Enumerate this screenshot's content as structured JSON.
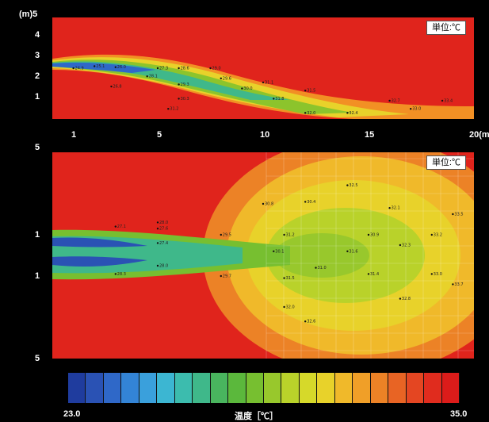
{
  "chart_data": [
    {
      "type": "heatmap",
      "ylabel": "(m)",
      "xlabel": "",
      "x_ticks": [
        "1",
        "5",
        "10",
        "15",
        "20(m)"
      ],
      "y_ticks": [
        "5",
        "4",
        "3",
        "2",
        "1"
      ],
      "unit_label": "単位:℃",
      "value_range": [
        23.0,
        35.0
      ],
      "points": [
        {
          "x": 1,
          "y": 2.5,
          "v": 24.9
        },
        {
          "x": 2,
          "y": 2.6,
          "v": 25.1
        },
        {
          "x": 3,
          "y": 2.55,
          "v": 26.0
        },
        {
          "x": 5,
          "y": 2.5,
          "v": 27.3
        },
        {
          "x": 6,
          "y": 2.5,
          "v": 28.6
        },
        {
          "x": 7.5,
          "y": 2.5,
          "v": 29.0
        },
        {
          "x": 2.8,
          "y": 1.6,
          "v": 26.8
        },
        {
          "x": 4.5,
          "y": 2.1,
          "v": 28.1
        },
        {
          "x": 6,
          "y": 1.7,
          "v": 29.3
        },
        {
          "x": 8,
          "y": 2.0,
          "v": 29.6
        },
        {
          "x": 9,
          "y": 1.5,
          "v": 30.0
        },
        {
          "x": 10,
          "y": 1.8,
          "v": 31.1
        },
        {
          "x": 12,
          "y": 1.4,
          "v": 31.5
        },
        {
          "x": 6,
          "y": 1.0,
          "v": 30.3
        },
        {
          "x": 5.5,
          "y": 0.5,
          "v": 31.2
        },
        {
          "x": 10.5,
          "y": 1.0,
          "v": 31.8
        },
        {
          "x": 12,
          "y": 0.3,
          "v": 32.0
        },
        {
          "x": 14,
          "y": 0.3,
          "v": 32.4
        },
        {
          "x": 16,
          "y": 0.9,
          "v": 32.7
        },
        {
          "x": 17,
          "y": 0.5,
          "v": 33.0
        },
        {
          "x": 18.5,
          "y": 0.9,
          "v": 33.4
        }
      ]
    },
    {
      "type": "heatmap",
      "y_ticks": [
        "5",
        "1",
        "1",
        "5"
      ],
      "unit_label": "単位:℃",
      "value_range": [
        23.0,
        35.0
      ],
      "points": [
        {
          "x": 3,
          "y": 1.4,
          "v": 27.1
        },
        {
          "x": 5,
          "y": 1.6,
          "v": 28.0
        },
        {
          "x": 5,
          "y": 1.3,
          "v": 27.6
        },
        {
          "x": 5,
          "y": 0.6,
          "v": 27.4
        },
        {
          "x": 5,
          "y": -0.5,
          "v": 28.0
        },
        {
          "x": 3,
          "y": -0.9,
          "v": 28.3
        },
        {
          "x": 8,
          "y": 1.0,
          "v": 29.5
        },
        {
          "x": 8,
          "y": -1.0,
          "v": 29.7
        },
        {
          "x": 10,
          "y": 2.5,
          "v": 30.8
        },
        {
          "x": 10.5,
          "y": 0.2,
          "v": 30.1
        },
        {
          "x": 11,
          "y": 1.0,
          "v": 31.2
        },
        {
          "x": 11,
          "y": -1.1,
          "v": 31.5
        },
        {
          "x": 12,
          "y": 2.6,
          "v": 30.4
        },
        {
          "x": 12.5,
          "y": -0.6,
          "v": 31.0
        },
        {
          "x": 14,
          "y": 3.4,
          "v": 32.5
        },
        {
          "x": 14,
          "y": 0.2,
          "v": 31.6
        },
        {
          "x": 15,
          "y": 1.0,
          "v": 30.9
        },
        {
          "x": 15,
          "y": -0.9,
          "v": 31.4
        },
        {
          "x": 16,
          "y": 2.3,
          "v": 32.1
        },
        {
          "x": 16.5,
          "y": 0.5,
          "v": 32.3
        },
        {
          "x": 16.5,
          "y": -2.1,
          "v": 32.8
        },
        {
          "x": 18,
          "y": 1.0,
          "v": 33.2
        },
        {
          "x": 18,
          "y": -0.9,
          "v": 33.0
        },
        {
          "x": 19,
          "y": 2.0,
          "v": 33.5
        },
        {
          "x": 19,
          "y": -1.4,
          "v": 33.7
        },
        {
          "x": 11,
          "y": -2.5,
          "v": 32.0
        },
        {
          "x": 12,
          "y": -3.2,
          "v": 32.6
        }
      ]
    }
  ],
  "colorbar": {
    "min_label": "23.0",
    "max_label": "35.0",
    "title": "温度［℃］",
    "colors": [
      "#1f3c9e",
      "#2a52b4",
      "#2f68c8",
      "#3384d6",
      "#3aa0dc",
      "#3cb6d2",
      "#3cbcae",
      "#3fb88a",
      "#49b55e",
      "#5bb83c",
      "#77bf30",
      "#98c82c",
      "#b9d22a",
      "#d6d92a",
      "#e8d22a",
      "#f0b92a",
      "#f09f28",
      "#ec8226",
      "#e86424",
      "#e44622",
      "#e02c1e",
      "#dc1c1a"
    ]
  }
}
